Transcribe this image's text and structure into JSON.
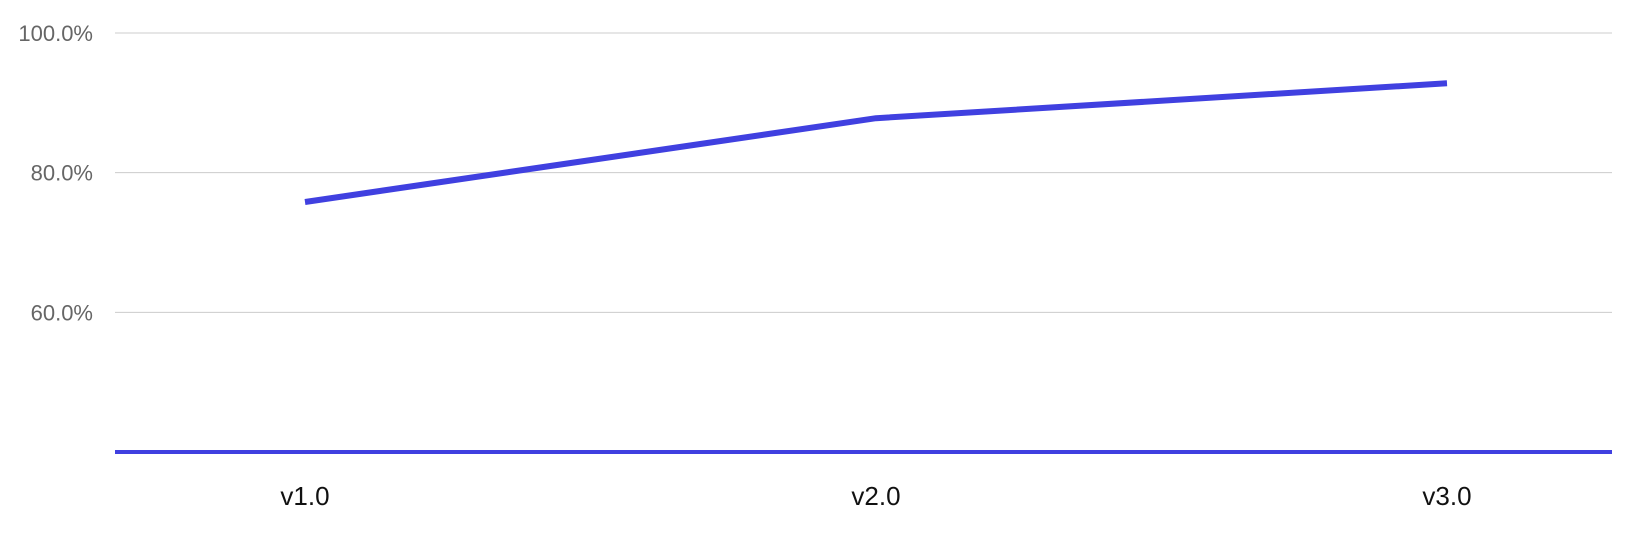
{
  "colors": {
    "series": "#4040e0",
    "grid": "#cccccc"
  },
  "chart_data": {
    "type": "line",
    "categories": [
      "v1.0",
      "v2.0",
      "v3.0"
    ],
    "series": [
      {
        "values": [
          75.8,
          87.8,
          92.8
        ]
      }
    ],
    "y_ticks": [
      "100.0%",
      "80.0%",
      "60.0%"
    ],
    "y_tick_values": [
      100,
      80,
      60
    ],
    "ylim": [
      40,
      100
    ],
    "grid": true,
    "legend": "none"
  }
}
